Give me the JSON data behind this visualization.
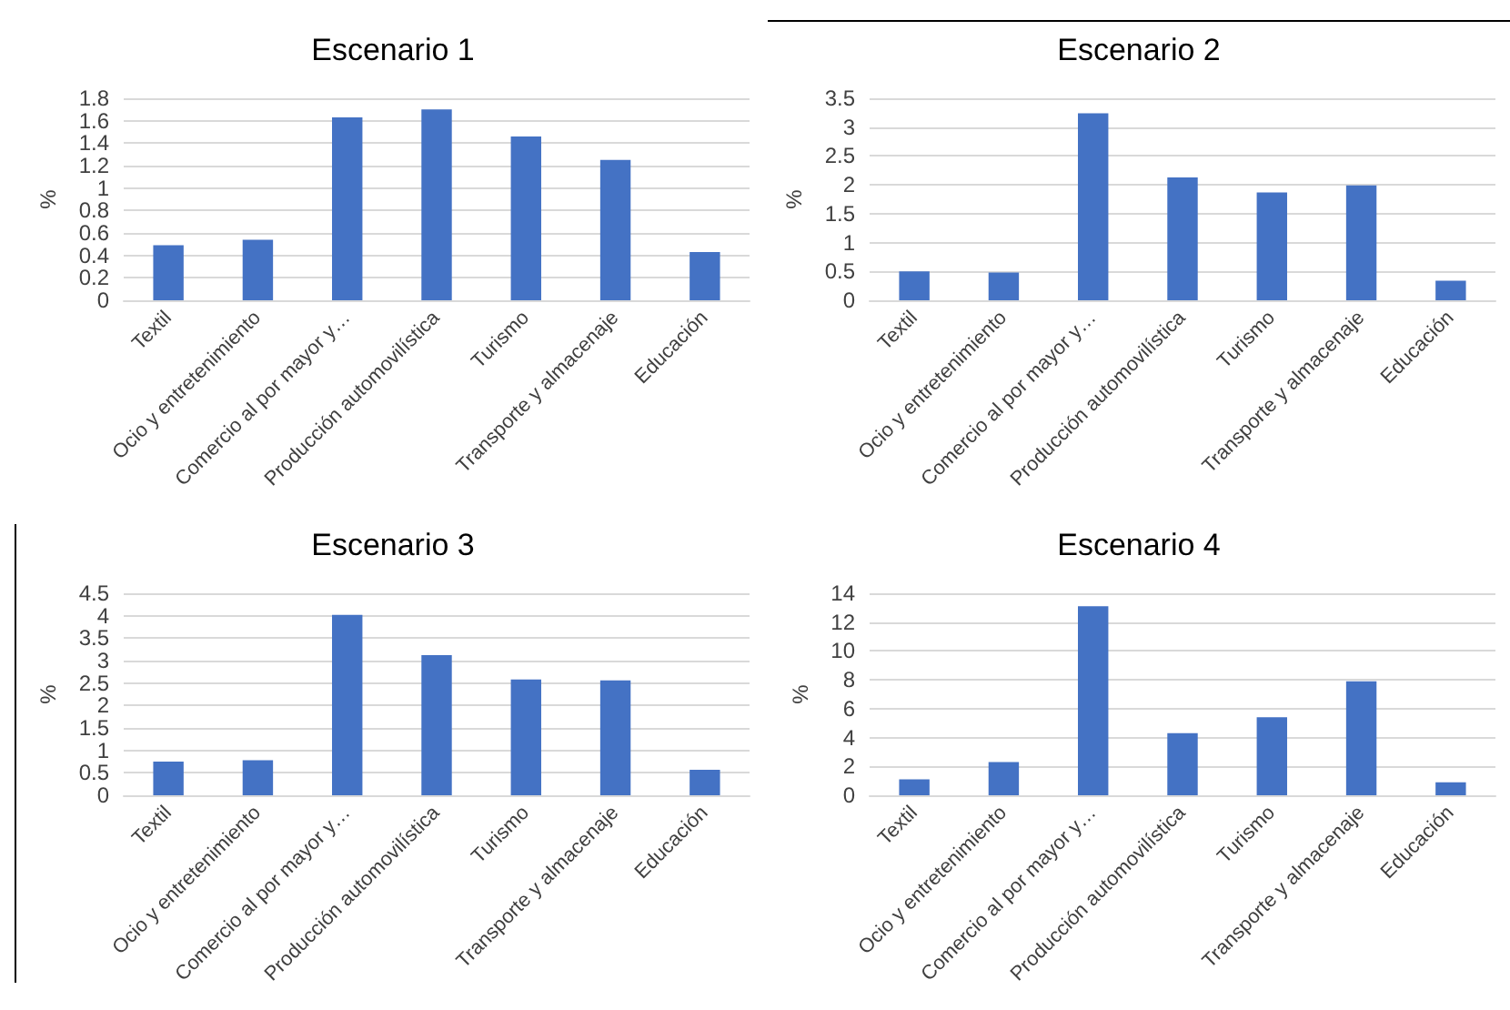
{
  "chart_data": [
    {
      "type": "bar",
      "title": "Escenario 1",
      "ylabel": "%",
      "categories": [
        "Textil",
        "Ocio y entretenimiento",
        "Comercio al por mayor y…",
        "Producción automovilística",
        "Turismo",
        "Transporte y almacenaje",
        "Educación"
      ],
      "values": [
        0.49,
        0.54,
        1.63,
        1.7,
        1.46,
        1.25,
        0.43
      ],
      "color": "#4472c4",
      "ylim": [
        0,
        1.8
      ],
      "yticks": [
        0,
        0.2,
        0.4,
        0.6,
        0.8,
        1,
        1.2,
        1.4,
        1.6,
        1.8
      ],
      "grid": "y"
    },
    {
      "type": "bar",
      "title": "Escenario 2",
      "ylabel": "%",
      "categories": [
        "Textil",
        "Ocio y entretenimiento",
        "Comercio al por mayor y…",
        "Producción automovilística",
        "Turismo",
        "Transporte y almacenaje",
        "Educación"
      ],
      "values": [
        0.5,
        0.48,
        3.24,
        2.13,
        1.87,
        1.99,
        0.34
      ],
      "color": "#4472c4",
      "ylim": [
        0,
        3.5
      ],
      "yticks": [
        0,
        0.5,
        1,
        1.5,
        2,
        2.5,
        3,
        3.5
      ],
      "grid": "y"
    },
    {
      "type": "bar",
      "title": "Escenario 3",
      "ylabel": "%",
      "categories": [
        "Textil",
        "Ocio y entretenimiento",
        "Comercio al por mayor y…",
        "Producción automovilística",
        "Turismo",
        "Transporte y almacenaje",
        "Educación"
      ],
      "values": [
        0.75,
        0.78,
        4.02,
        3.12,
        2.58,
        2.56,
        0.57
      ],
      "color": "#4472c4",
      "ylim": [
        0,
        4.5
      ],
      "yticks": [
        0,
        0.5,
        1,
        1.5,
        2,
        2.5,
        3,
        3.5,
        4,
        4.5
      ],
      "grid": "y"
    },
    {
      "type": "bar",
      "title": "Escenario 4",
      "ylabel": "%",
      "categories": [
        "Textil",
        "Ocio y entretenimiento",
        "Comercio al por mayor y…",
        "Producción automovilística",
        "Turismo",
        "Transporte y almacenaje",
        "Educación"
      ],
      "values": [
        1.1,
        2.3,
        13.1,
        4.3,
        5.4,
        7.9,
        0.9
      ],
      "color": "#4472c4",
      "ylim": [
        0,
        14
      ],
      "yticks": [
        0,
        2,
        4,
        6,
        8,
        10,
        12,
        14
      ],
      "grid": "y"
    }
  ]
}
